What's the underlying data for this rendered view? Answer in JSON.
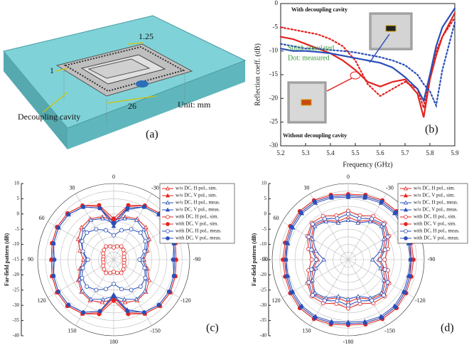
{
  "schematic": {
    "panel": "(a)",
    "labels": [
      "1",
      "1.25",
      "26",
      "Decoupling cavity",
      "Unit: mm"
    ]
  },
  "chart_data": [
    {
      "type": "line",
      "panel": "(b)",
      "xlabel": "Frequency (GHz)",
      "ylabel": "Reflection coeff. (dB)",
      "annotations": [
        "With decoupling cavity",
        "Solid: simulated",
        "Dot: measured",
        "Without decoupling cavity"
      ],
      "x": [
        5.2,
        5.25,
        5.3,
        5.35,
        5.4,
        5.45,
        5.5,
        5.55,
        5.6,
        5.65,
        5.7,
        5.75,
        5.775,
        5.8,
        5.825,
        5.85,
        5.9
      ],
      "xlim": [
        5.2,
        5.9
      ],
      "xticks": [
        5.2,
        5.3,
        5.4,
        5.5,
        5.6,
        5.7,
        5.8,
        5.9
      ],
      "ylim": [
        -30,
        0
      ],
      "yticks": [
        -30,
        -25,
        -20,
        -15,
        -10,
        -5,
        0
      ],
      "series": [
        {
          "color": "#e3231f",
          "style": "solid",
          "values": [
            -7,
            -7.5,
            -8.5,
            -9.5,
            -10.5,
            -12,
            -14,
            -16.5,
            -17.5,
            -16.5,
            -16,
            -19,
            -24,
            -16,
            -11,
            -7,
            -2
          ]
        },
        {
          "color": "#e3231f",
          "style": "dotted",
          "values": [
            -5,
            -5.5,
            -6,
            -6.5,
            -7.5,
            -9,
            -12,
            -17,
            -19.5,
            -18,
            -16.5,
            -18,
            -22,
            -15,
            -10,
            -7,
            -3
          ]
        },
        {
          "color": "#2a4fb8",
          "style": "solid",
          "values": [
            -9.5,
            -10,
            -10,
            -10.2,
            -10.5,
            -11,
            -11.5,
            -12,
            -12.5,
            -13.5,
            -15.5,
            -18,
            -20.5,
            -15,
            -9,
            -5,
            -1
          ]
        },
        {
          "color": "#2a4fb8",
          "style": "dotted",
          "values": [
            -8.5,
            -9,
            -9.5,
            -9.5,
            -9.8,
            -10,
            -10.3,
            -10.8,
            -11.3,
            -12,
            -13,
            -15,
            -17,
            -18.5,
            -21.5,
            -14,
            -4
          ]
        }
      ]
    },
    {
      "type": "polar",
      "panel": "(c)",
      "rlabel": "Far-field pattern (dB)",
      "rlim": [
        -40,
        10
      ],
      "rticks": [
        10,
        5,
        0,
        -5,
        -10,
        -15,
        -20,
        -25,
        -30,
        -35,
        -40
      ],
      "angle_ticks": [
        0,
        30,
        60,
        90,
        120,
        150,
        180,
        -150,
        -120,
        -90,
        -60,
        -30
      ],
      "x": [
        0,
        15,
        30,
        45,
        60,
        75,
        90,
        105,
        120,
        135,
        150,
        165,
        180,
        195,
        210,
        225,
        240,
        255,
        270,
        285,
        300,
        315,
        330,
        345
      ],
      "series": [
        {
          "name": "w/o DC, H pol., sim.",
          "color": "#e3231f",
          "marker": "triangle",
          "filled": false,
          "values": [
            -14,
            -11,
            -9,
            -10,
            -13,
            -17,
            -20,
            -17,
            -13,
            -10,
            -9,
            -11,
            -14,
            -11,
            -9,
            -10,
            -13,
            -17,
            -20,
            -17,
            -13,
            -10,
            -9,
            -11
          ]
        },
        {
          "name": "w/o DC, V pol., sim.",
          "color": "#e3231f",
          "marker": "triangle",
          "filled": true,
          "values": [
            -15,
            -4,
            1,
            3,
            3,
            2,
            1,
            2,
            3,
            3,
            1,
            -4,
            -15,
            -4,
            1,
            3,
            3,
            2,
            1,
            2,
            3,
            3,
            1,
            -4
          ]
        },
        {
          "name": "w/o DC, H pol., meas.",
          "color": "#2a4fb8",
          "marker": "triangle",
          "filled": false,
          "values": [
            -16,
            -12,
            -10,
            -12,
            -15,
            -19,
            -22,
            -18,
            -14,
            -11,
            -10,
            -13,
            -16,
            -13,
            -10,
            -11,
            -15,
            -18,
            -21,
            -18,
            -14,
            -12,
            -10,
            -12
          ]
        },
        {
          "name": "w/o DC, V pol., meas.",
          "color": "#2a4fb8",
          "marker": "triangle",
          "filled": true,
          "values": [
            -18,
            -5,
            0,
            2,
            2,
            1,
            0,
            1,
            2,
            2,
            0,
            -5,
            -17,
            -6,
            0,
            2,
            2,
            1,
            0,
            1,
            2,
            2,
            0,
            -6
          ]
        },
        {
          "name": "with DC, H pol., sim.",
          "color": "#e3231f",
          "marker": "circle",
          "filled": false,
          "values": [
            -32,
            -31,
            -30,
            -31,
            -32,
            -33,
            -33,
            -33,
            -32,
            -31,
            -30,
            -31,
            -32,
            -31,
            -30,
            -31,
            -32,
            -33,
            -33,
            -33,
            -32,
            -31,
            -30,
            -31
          ]
        },
        {
          "name": "with DC, V pol., sim.",
          "color": "#e3231f",
          "marker": "circle",
          "filled": true,
          "values": [
            -13,
            -3,
            1,
            3,
            3,
            2,
            1,
            2,
            3,
            3,
            1,
            -3,
            -13,
            -3,
            1,
            3,
            3,
            2,
            1,
            2,
            3,
            3,
            1,
            -3
          ]
        },
        {
          "name": "with DC, H pol., meas.",
          "color": "#2a4fb8",
          "marker": "circle",
          "filled": false,
          "values": [
            -24,
            -20,
            -17,
            -15,
            -16,
            -19,
            -23,
            -19,
            -16,
            -15,
            -17,
            -20,
            -24,
            -20,
            -17,
            -15,
            -16,
            -19,
            -23,
            -19,
            -16,
            -15,
            -17,
            -20
          ]
        },
        {
          "name": "with DC, V pol., meas.",
          "color": "#2a4fb8",
          "marker": "circle",
          "filled": true,
          "values": [
            -16,
            -5,
            0,
            2,
            2,
            1,
            -1,
            1,
            2,
            2,
            0,
            -5,
            -16,
            -5,
            0,
            2,
            2,
            1,
            -1,
            1,
            2,
            2,
            0,
            -5
          ]
        }
      ]
    },
    {
      "type": "polar",
      "panel": "(d)",
      "rlabel": "Far-field pattern (dB)",
      "rlim": [
        -40,
        10
      ],
      "rticks": [
        10,
        5,
        0,
        -5,
        -10,
        -15,
        -20,
        -25,
        -30,
        -35,
        -40
      ],
      "angle_ticks": [
        0,
        30,
        60,
        90,
        120,
        150,
        -180,
        -150,
        -120,
        -90,
        -60,
        -30
      ],
      "x": [
        0,
        15,
        30,
        45,
        60,
        75,
        90,
        105,
        120,
        135,
        150,
        165,
        180,
        195,
        210,
        225,
        240,
        255,
        270,
        285,
        300,
        315,
        330,
        345
      ],
      "series": [
        {
          "name": "w/o DC, H pol., sim.",
          "color": "#e3231f",
          "marker": "triangle",
          "filled": false,
          "values": [
            -12,
            -14,
            -10,
            -8,
            -12,
            -16,
            -20,
            -16,
            -12,
            -8,
            -10,
            -14,
            -12,
            -14,
            -10,
            -8,
            -12,
            -16,
            -20,
            -16,
            -12,
            -8,
            -10,
            -14
          ]
        },
        {
          "name": "w/o DC, V pol., sim.",
          "color": "#e3231f",
          "marker": "triangle",
          "filled": true,
          "values": [
            2,
            3,
            4,
            4,
            3,
            2,
            2,
            2,
            3,
            4,
            4,
            3,
            2,
            3,
            4,
            4,
            3,
            2,
            2,
            2,
            3,
            4,
            4,
            3
          ]
        },
        {
          "name": "w/o DC, H pol., meas.",
          "color": "#2a4fb8",
          "marker": "triangle",
          "filled": false,
          "values": [
            -14,
            -15,
            -11,
            -9,
            -13,
            -18,
            -24,
            -18,
            -13,
            -9,
            -11,
            -15,
            -14,
            -15,
            -11,
            -9,
            -13,
            -18,
            -24,
            -18,
            -13,
            -9,
            -11,
            -15
          ]
        },
        {
          "name": "w/o DC, V pol., meas.",
          "color": "#2a4fb8",
          "marker": "triangle",
          "filled": true,
          "values": [
            1,
            2,
            3,
            3,
            2,
            1,
            1,
            1,
            2,
            3,
            3,
            2,
            1,
            2,
            3,
            3,
            2,
            1,
            1,
            1,
            2,
            3,
            3,
            2
          ]
        },
        {
          "name": "with DC, H pol., sim.",
          "color": "#e3231f",
          "marker": "circle",
          "filled": false,
          "values": [
            -8,
            -10,
            -7,
            -6,
            -9,
            -13,
            -16,
            -13,
            -9,
            -6,
            -7,
            -10,
            -8,
            -10,
            -7,
            -6,
            -9,
            -13,
            -16,
            -13,
            -9,
            -6,
            -7,
            -10
          ]
        },
        {
          "name": "with DC, V pol., sim.",
          "color": "#e3231f",
          "marker": "circle",
          "filled": true,
          "values": [
            3,
            4,
            5,
            5,
            4,
            3,
            3,
            3,
            4,
            5,
            5,
            4,
            3,
            4,
            5,
            5,
            4,
            3,
            3,
            3,
            4,
            5,
            5,
            4
          ]
        },
        {
          "name": "with DC, H pol., meas.",
          "color": "#2a4fb8",
          "marker": "circle",
          "filled": false,
          "values": [
            -10,
            -12,
            -9,
            -7,
            -10,
            -15,
            -19,
            -15,
            -10,
            -7,
            -9,
            -12,
            -10,
            -12,
            -9,
            -7,
            -10,
            -15,
            -19,
            -15,
            -10,
            -7,
            -9,
            -12
          ]
        },
        {
          "name": "with DC, V pol., meas.",
          "color": "#2a4fb8",
          "marker": "circle",
          "filled": true,
          "values": [
            2,
            3,
            4,
            4,
            3,
            2,
            1,
            2,
            3,
            4,
            4,
            3,
            2,
            3,
            4,
            4,
            3,
            2,
            1,
            2,
            3,
            4,
            4,
            3
          ]
        }
      ]
    }
  ]
}
